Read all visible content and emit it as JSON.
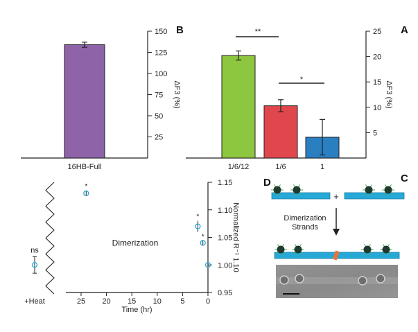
{
  "panels": {
    "A": "A",
    "B": "B",
    "C": "C",
    "D": "D"
  },
  "colors": {
    "bar_green": "#8dc63f",
    "bar_red": "#e0474c",
    "bar_blue": "#2a7fc1",
    "bar_purple": "#8e63a8",
    "marker": "#2aa6d6",
    "strand": "#27a9d8",
    "nucleosome": "#1f3a2e",
    "tails": "#4caf50",
    "link": "#e8743b"
  },
  "panelC": {
    "plus": "+",
    "arrow_label_line1": "Dimerization",
    "arrow_label_line2": "Strands"
  },
  "panelD": {
    "inner_label": "Dimerization",
    "ns_label": "ns",
    "heat_label": "+Heat"
  },
  "chart_data": [
    {
      "panel": "A",
      "type": "bar",
      "categories": [
        "1/6/12",
        "1/6",
        "1"
      ],
      "values": [
        20.2,
        10.3,
        4.1
      ],
      "errors": [
        0.9,
        1.2,
        3.5
      ],
      "ylabel": "ΔF3 (%)",
      "ylim": [
        0,
        25
      ],
      "yticks": [
        5,
        10,
        15,
        20,
        25
      ],
      "significance": [
        {
          "between": [
            "1/6/12",
            "1/6"
          ],
          "label": "**"
        },
        {
          "between": [
            "1/6",
            "1"
          ],
          "label": "*"
        }
      ],
      "grid": false
    },
    {
      "panel": "B",
      "type": "bar",
      "categories": [
        "16HB-Full"
      ],
      "values": [
        134
      ],
      "errors": [
        3
      ],
      "ylabel": "ΔF3 (%)",
      "ylim": [
        0,
        150
      ],
      "yticks": [
        25,
        50,
        75,
        100,
        125,
        150
      ],
      "grid": false
    },
    {
      "panel": "D",
      "type": "scatter",
      "xlabel": "Time (hr)",
      "ylabel": "Normalized R⁻¹ 1.10",
      "xlim": [
        0,
        28
      ],
      "ylim": [
        0.95,
        1.15
      ],
      "xticks": [
        0,
        5,
        10,
        15,
        20,
        25
      ],
      "yticks": [
        0.95,
        1.0,
        1.05,
        1.1,
        1.15
      ],
      "points": [
        {
          "x": 0,
          "y": 1.0,
          "err": 0.003,
          "sig": ""
        },
        {
          "x": 1,
          "y": 1.04,
          "err": 0.004,
          "sig": "*"
        },
        {
          "x": 2,
          "y": 1.07,
          "err": 0.01,
          "sig": "*"
        },
        {
          "x": 24,
          "y": 1.13,
          "err": 0.005,
          "sig": "*"
        }
      ],
      "heat_point": {
        "label": "+Heat",
        "y": 1.0,
        "err": 0.015,
        "sig": "ns"
      },
      "grid": false
    }
  ]
}
